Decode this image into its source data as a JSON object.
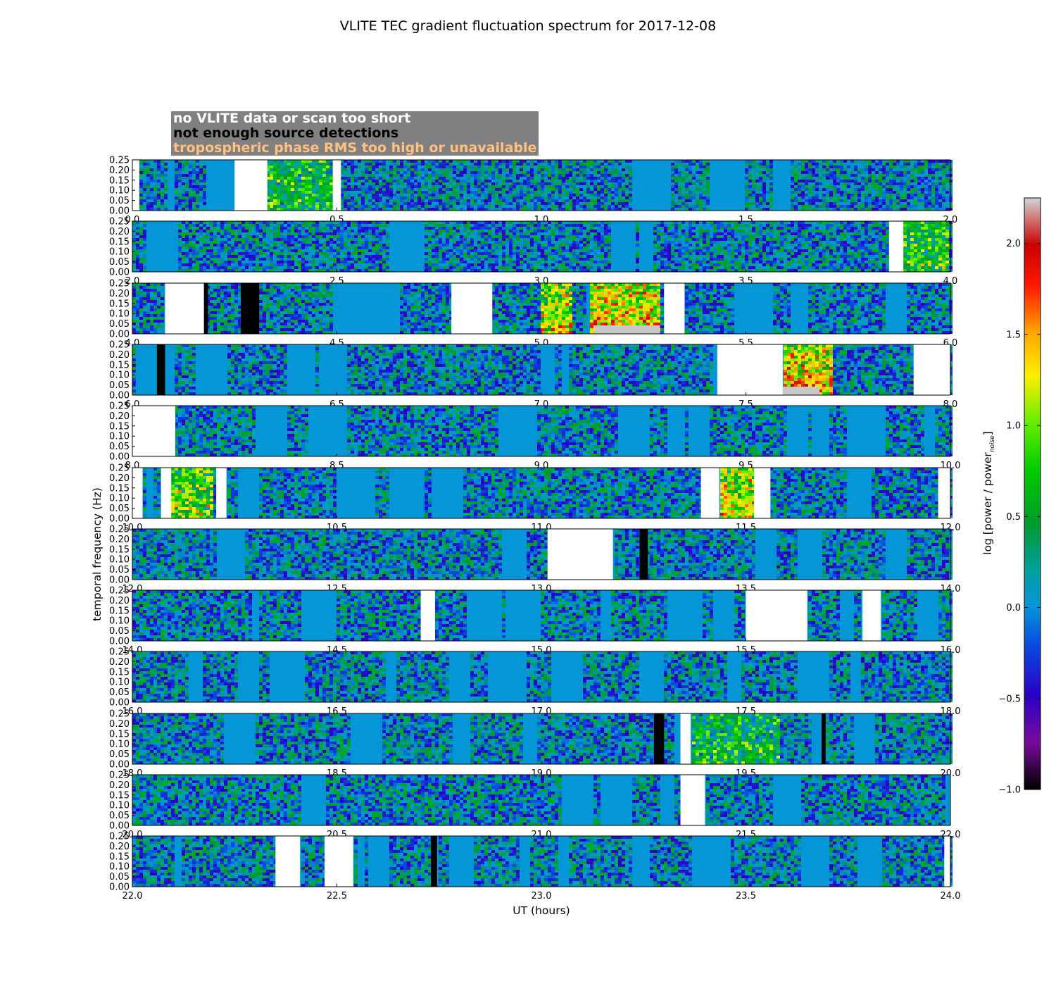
{
  "chart_data": {
    "type": "heatmap",
    "title": "VLITE TEC gradient fluctuation spectrum for 2017-12-08",
    "xlabel": "UT (hours)",
    "ylabel": "temporal frequency (Hz)",
    "ylim": [
      0,
      0.25
    ],
    "yticks": [
      "0.00",
      "0.05",
      "0.10",
      "0.15",
      "0.20",
      "0.25"
    ],
    "colorbar": {
      "label_main": "log [power / power",
      "label_sub": "noise",
      "label_end": "]",
      "range": [
        -1.0,
        2.25
      ],
      "ticks": [
        "−1.0",
        "−0.5",
        "0.0",
        "0.5",
        "1.0",
        "1.5",
        "2.0"
      ],
      "tick_values": [
        -1.0,
        -0.5,
        0.0,
        0.5,
        1.0,
        1.5,
        2.0
      ]
    },
    "legend": [
      {
        "text": "no VLITE data or scan too short",
        "color": "#ffffff"
      },
      {
        "text": "not enough source detections",
        "color": "#000000"
      },
      {
        "text": "tropospheric phase RMS too high or unavailable",
        "color": "#ffc080"
      }
    ],
    "panels": [
      {
        "range": [
          0,
          2
        ],
        "xticks": [
          "0.0",
          "0.5",
          "1.0",
          "1.5",
          "2.0"
        ],
        "nodata": [
          [
            0,
            0.017
          ],
          [
            0.25,
            0.33
          ],
          [
            0.49,
            0.51
          ]
        ],
        "lowdet": [],
        "trop": [],
        "hot": [
          [
            0.33,
            0.49,
            0.35
          ]
        ]
      },
      {
        "range": [
          2,
          4
        ],
        "xticks": [
          "2.0",
          "2.5",
          "3.0",
          "3.5",
          "4.0"
        ],
        "nodata": [
          [
            3.85,
            3.885
          ]
        ],
        "lowdet": [],
        "trop": [],
        "hot": [
          [
            3.885,
            4.0,
            0.5
          ]
        ]
      },
      {
        "range": [
          4,
          6
        ],
        "xticks": [
          "4.0",
          "4.5",
          "5.0",
          "5.5",
          "6.0"
        ],
        "nodata": [
          [
            4.08,
            4.18
          ],
          [
            4.78,
            4.88
          ],
          [
            5.3,
            5.35
          ]
        ],
        "lowdet": [
          [
            4.175,
            4.185
          ],
          [
            4.265,
            4.31
          ]
        ],
        "trop": [
          [
            5.13,
            5.29
          ]
        ],
        "hot": [
          [
            5.0,
            5.08,
            0.85
          ],
          [
            5.12,
            5.29,
            1.0
          ]
        ]
      },
      {
        "range": [
          6,
          8
        ],
        "xticks": [
          "6.0",
          "6.5",
          "7.0",
          "7.5",
          "8.0"
        ],
        "nodata": [
          [
            7.43,
            7.59
          ],
          [
            7.91,
            8.0
          ]
        ],
        "lowdet": [
          [
            6.06,
            6.08
          ]
        ],
        "trop": [
          [
            7.59,
            7.68
          ]
        ],
        "hot": [
          [
            7.59,
            7.71,
            1.0
          ]
        ]
      },
      {
        "range": [
          8,
          10
        ],
        "xticks": [
          "8.0",
          "8.5",
          "9.0",
          "9.5",
          "10.0"
        ],
        "nodata": [
          [
            8.0,
            8.105
          ]
        ],
        "lowdet": [],
        "trop": [],
        "hot": []
      },
      {
        "range": [
          10,
          12
        ],
        "xticks": [
          "10.0",
          "10.5",
          "11.0",
          "11.5",
          "12.0"
        ],
        "nodata": [
          [
            10.0,
            10.025
          ],
          [
            10.07,
            10.095
          ],
          [
            10.205,
            10.23
          ],
          [
            11.39,
            11.435
          ],
          [
            11.52,
            11.56
          ],
          [
            11.97,
            12.0
          ]
        ],
        "lowdet": [],
        "trop": [],
        "hot": [
          [
            10.095,
            10.2,
            0.6
          ],
          [
            11.435,
            11.52,
            0.85
          ]
        ]
      },
      {
        "range": [
          12,
          14
        ],
        "xticks": [
          "12.0",
          "12.5",
          "13.0",
          "13.5",
          "14.0"
        ],
        "nodata": [
          [
            13.015,
            13.175
          ]
        ],
        "lowdet": [
          [
            13.24,
            13.26
          ]
        ],
        "trop": [],
        "hot": []
      },
      {
        "range": [
          14,
          16
        ],
        "xticks": [
          "14.0",
          "14.5",
          "15.0",
          "15.5",
          "16.0"
        ],
        "nodata": [
          [
            14.705,
            14.74
          ],
          [
            15.5,
            15.65
          ],
          [
            15.785,
            15.83
          ]
        ],
        "lowdet": [],
        "trop": [],
        "hot": []
      },
      {
        "range": [
          16,
          18
        ],
        "xticks": [
          "16.0",
          "16.5",
          "17.0",
          "17.5",
          "18.0"
        ],
        "nodata": [],
        "lowdet": [],
        "trop": [],
        "hot": []
      },
      {
        "range": [
          18,
          20
        ],
        "xticks": [
          "18.0",
          "18.5",
          "19.0",
          "19.5",
          "20.0"
        ],
        "nodata": [
          [
            19.34,
            19.365
          ]
        ],
        "lowdet": [
          [
            19.275,
            19.3
          ],
          [
            19.685,
            19.695
          ]
        ],
        "trop": [],
        "hot": [
          [
            19.365,
            19.58,
            0.35
          ]
        ]
      },
      {
        "range": [
          20,
          22
        ],
        "xticks": [
          "20.0",
          "20.5",
          "21.0",
          "21.5",
          "22.0"
        ],
        "nodata": [
          [
            21.34,
            21.4
          ]
        ],
        "lowdet": [],
        "trop": [],
        "hot": []
      },
      {
        "range": [
          22,
          24
        ],
        "xticks": [
          "22.0",
          "22.5",
          "23.0",
          "23.5",
          "24.0"
        ],
        "nodata": [
          [
            22.35,
            22.41
          ],
          [
            22.47,
            22.54
          ],
          [
            23.985,
            24.0
          ]
        ],
        "lowdet": [
          [
            22.73,
            22.745
          ]
        ],
        "trop": [],
        "hot": []
      }
    ]
  }
}
